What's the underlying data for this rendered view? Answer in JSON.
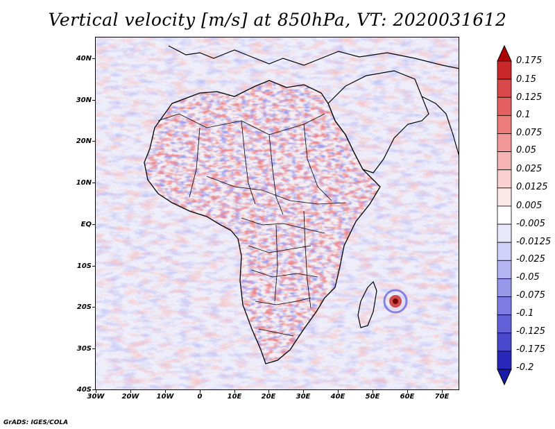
{
  "title": "Vertical velocity [m/s] at 850hPa, VT: 2020031612",
  "lat_labels": [
    "40N",
    "30N",
    "20N",
    "10N",
    "EQ",
    "10S",
    "20S",
    "30S",
    "40S"
  ],
  "lon_labels": [
    "30W",
    "20W",
    "10W",
    "0",
    "10E",
    "20E",
    "30E",
    "40E",
    "50E",
    "60E",
    "70E"
  ],
  "colorbar": {
    "labels": [
      "0.175",
      "0.15",
      "0.125",
      "0.1",
      "0.075",
      "0.05",
      "0.025",
      "0.0125",
      "0.005",
      "-0.005",
      "-0.0125",
      "-0.025",
      "-0.05",
      "-0.075",
      "-0.1",
      "-0.125",
      "-0.175",
      "-0.2"
    ],
    "colors": [
      "#b00000",
      "#c82828",
      "#d84848",
      "#e46060",
      "#ec7c7c",
      "#f29898",
      "#f6b4b4",
      "#fad0d0",
      "#fde8e8",
      "#ffffff",
      "#e8e8fc",
      "#d0d0f8",
      "#b4b4f2",
      "#9898ea",
      "#7c7ce2",
      "#6060d8",
      "#4848cc",
      "#2828bc",
      "#1a1aa8"
    ]
  },
  "footer": "GrADS: IGES/COLA"
}
